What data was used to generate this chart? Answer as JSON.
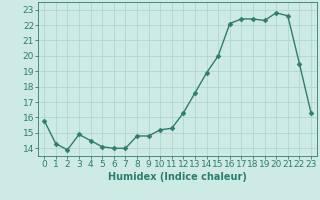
{
  "x": [
    0,
    1,
    2,
    3,
    4,
    5,
    6,
    7,
    8,
    9,
    10,
    11,
    12,
    13,
    14,
    15,
    16,
    17,
    18,
    19,
    20,
    21,
    22,
    23
  ],
  "y": [
    15.8,
    14.3,
    13.9,
    14.9,
    14.5,
    14.1,
    14.0,
    14.0,
    14.8,
    14.8,
    15.2,
    15.3,
    16.3,
    17.6,
    18.9,
    20.0,
    22.1,
    22.4,
    22.4,
    22.3,
    22.8,
    22.6,
    19.5,
    16.3
  ],
  "line_color": "#2e7d6e",
  "marker": "D",
  "marker_size": 2.5,
  "bg_color": "#ceeae5",
  "grid_color": "#b0d8d2",
  "xlabel": "Humidex (Indice chaleur)",
  "ylabel_ticks": [
    14,
    15,
    16,
    17,
    18,
    19,
    20,
    21,
    22,
    23
  ],
  "xlim": [
    -0.5,
    23.5
  ],
  "ylim": [
    13.5,
    23.5
  ],
  "xlabel_fontsize": 7,
  "tick_fontsize": 6.5,
  "line_width": 1.0
}
